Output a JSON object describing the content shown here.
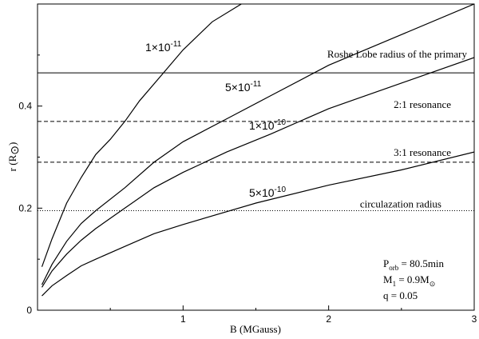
{
  "chart_data": {
    "type": "line",
    "xlabel": "B (MGauss)",
    "ylabel": "r (R",
    "ylabel_symbol": "⊙",
    "ylabel_close": ")",
    "xlim": [
      0,
      3
    ],
    "ylim": [
      0,
      0.6
    ],
    "x_ticks": [
      {
        "v": 1,
        "label": "1"
      },
      {
        "v": 2,
        "label": "2"
      },
      {
        "v": 3,
        "label": "3"
      }
    ],
    "y_ticks": [
      {
        "v": 0,
        "label": "0"
      },
      {
        "v": 0.2,
        "label": "0.2"
      },
      {
        "v": 0.4,
        "label": "0.4"
      }
    ],
    "grid": false,
    "series": [
      {
        "label_mantissa": "1×10",
        "label_exponent": "-11",
        "x": [
          0.03,
          0.1,
          0.2,
          0.3,
          0.4,
          0.5,
          0.6,
          0.7,
          0.85,
          1.0,
          1.2,
          1.4
        ],
        "y": [
          0.085,
          0.14,
          0.21,
          0.26,
          0.305,
          0.335,
          0.37,
          0.41,
          0.46,
          0.51,
          0.565,
          0.6
        ]
      },
      {
        "label_mantissa": "5×10",
        "label_exponent": "-11",
        "x": [
          0.03,
          0.1,
          0.2,
          0.3,
          0.4,
          0.6,
          0.8,
          1.0,
          1.3,
          1.6,
          2.0,
          2.5,
          3.0
        ],
        "y": [
          0.05,
          0.09,
          0.135,
          0.17,
          0.195,
          0.24,
          0.29,
          0.33,
          0.375,
          0.42,
          0.48,
          0.54,
          0.6
        ]
      },
      {
        "label_mantissa": "1×10",
        "label_exponent": "-10",
        "x": [
          0.03,
          0.1,
          0.2,
          0.3,
          0.4,
          0.6,
          0.8,
          1.0,
          1.3,
          1.6,
          2.0,
          2.5,
          3.0
        ],
        "y": [
          0.045,
          0.077,
          0.11,
          0.137,
          0.16,
          0.2,
          0.24,
          0.27,
          0.31,
          0.345,
          0.395,
          0.445,
          0.495
        ]
      },
      {
        "label_mantissa": "5×10",
        "label_exponent": "-10",
        "x": [
          0.03,
          0.1,
          0.2,
          0.3,
          0.4,
          0.6,
          0.8,
          1.0,
          1.5,
          2.0,
          2.5,
          3.0
        ],
        "y": [
          0.028,
          0.048,
          0.068,
          0.087,
          0.1,
          0.125,
          0.15,
          0.168,
          0.21,
          0.245,
          0.275,
          0.31
        ]
      }
    ],
    "reference_lines": [
      {
        "label": "Roshe Lobe radius of the primary",
        "y": 0.465,
        "style": "solid"
      },
      {
        "label": "2:1 resonance",
        "y": 0.37,
        "style": "dashed"
      },
      {
        "label": "3:1 resonance",
        "y": 0.29,
        "style": "dashed"
      },
      {
        "label": "circulazation radius",
        "y": 0.195,
        "style": "dotted"
      }
    ],
    "parameters": [
      {
        "main": "P",
        "sub": "orb",
        "rest": " = 80.5min"
      },
      {
        "main": "M",
        "sub": "1",
        "rest": " = 0.9M",
        "sub2": "⊙"
      },
      {
        "main": "q = 0.05",
        "sub": "",
        "rest": ""
      }
    ]
  }
}
